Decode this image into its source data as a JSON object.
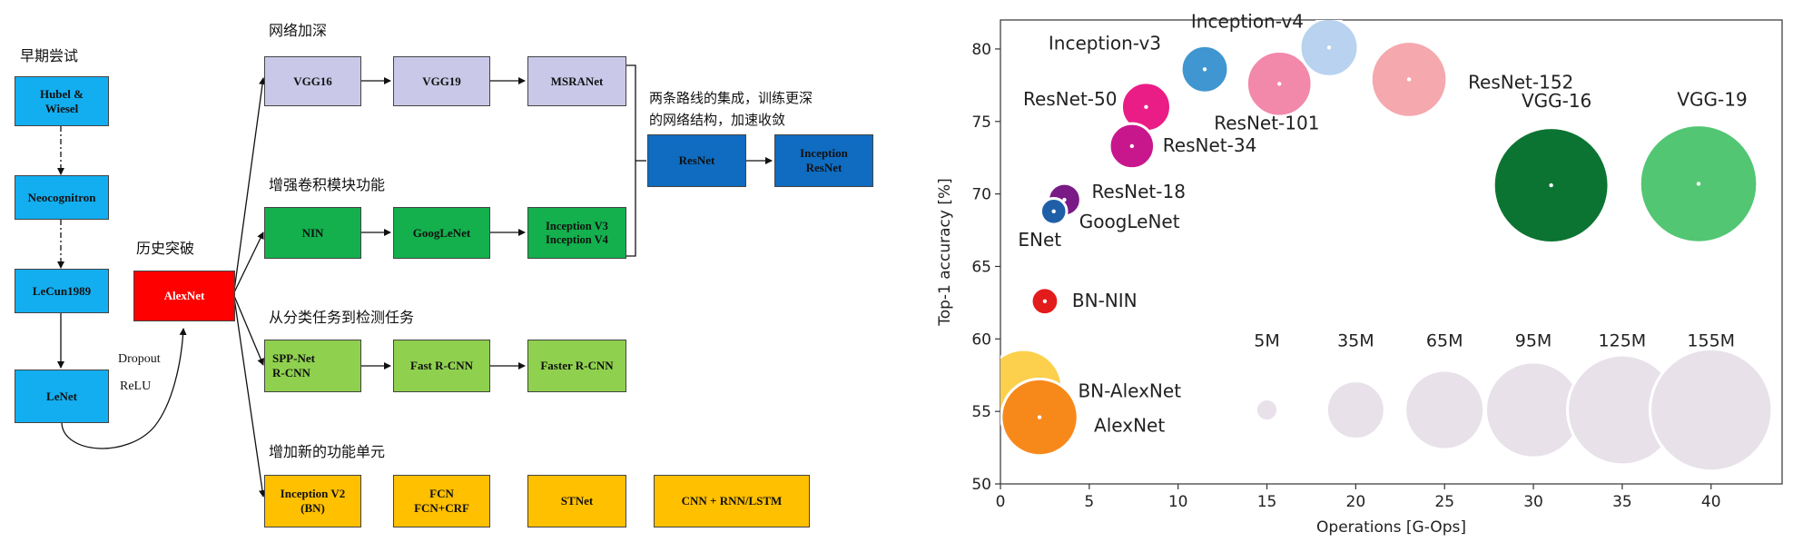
{
  "colors": {
    "blue": "#12aef0",
    "red": "#ff0000",
    "lavender": "#c9c8e8",
    "green": "#13b04d",
    "lightgreen": "#8fd14f",
    "darkblue": "#0f6cc0",
    "orange": "#ffc000"
  },
  "diagram": {
    "sections": {
      "early": "早期尝试",
      "breakthrough": "历史突破",
      "deeper": "网络加深",
      "conv": "增强卷积模块功能",
      "detect": "从分类任务到检测任务",
      "newunit": "增加新的功能单元"
    },
    "note": "两条路线的集成，训练更深\n的网络结构，加速收敛",
    "edge_labels": {
      "dropout": "Dropout",
      "relu": "ReLU"
    },
    "nodes": {
      "hubel": "Hubel &\nWiesel",
      "neocognitron": "Neocognitron",
      "lecun": "LeCun1989",
      "lenet": "LeNet",
      "alexnet": "AlexNet",
      "vgg16": "VGG16",
      "vgg19": "VGG19",
      "msranet": "MSRANet",
      "nin": "NIN",
      "googlenet": "GoogLeNet",
      "inception_v3v4": "Inception V3\nInception V4",
      "resnet": "ResNet",
      "inception_resnet": "Inception\nResNet",
      "spp": "SPP-Net\nR-CNN",
      "fast_rcnn": "Fast R-CNN",
      "faster_rcnn": "Faster R-CNN",
      "inception_v2": "Inception V2\n(BN)",
      "fcn": "FCN\nFCN+CRF",
      "stnet": "STNet",
      "cnn_rnn": "CNN + RNN/LSTM"
    }
  },
  "chart_data": {
    "type": "scatter",
    "xlabel": "Operations [G-Ops]",
    "ylabel": "Top-1 accuracy [%]",
    "xlim": [
      0,
      44
    ],
    "ylim": [
      50,
      82
    ],
    "xticks": [
      0,
      5,
      10,
      15,
      20,
      25,
      30,
      35,
      40
    ],
    "yticks": [
      50,
      55,
      60,
      65,
      70,
      75,
      80
    ],
    "points": [
      {
        "name": "Inception-v4",
        "x": 18.5,
        "y": 80.1,
        "size_m": 35,
        "color": "#b8d2f0"
      },
      {
        "name": "Inception-v3",
        "x": 11.5,
        "y": 78.6,
        "size_m": 23,
        "color": "#3f96d0"
      },
      {
        "name": "ResNet-152",
        "x": 23,
        "y": 77.9,
        "size_m": 60,
        "color": "#f5a8ae"
      },
      {
        "name": "ResNet-101",
        "x": 15.7,
        "y": 77.6,
        "size_m": 44,
        "color": "#f288aa"
      },
      {
        "name": "ResNet-50",
        "x": 8.2,
        "y": 76.0,
        "size_m": 25,
        "color": "#ea1d86"
      },
      {
        "name": "ResNet-34",
        "x": 7.4,
        "y": 73.3,
        "size_m": 21,
        "color": "#c8178c"
      },
      {
        "name": "VGG-16",
        "x": 31,
        "y": 70.6,
        "size_m": 138,
        "color": "#0c7432"
      },
      {
        "name": "VGG-19",
        "x": 39.3,
        "y": 70.7,
        "size_m": 144,
        "color": "#52c673"
      },
      {
        "name": "ResNet-18",
        "x": 3.6,
        "y": 69.6,
        "size_m": 11,
        "color": "#7a1a86"
      },
      {
        "name": "GoogLeNet",
        "x": 3.0,
        "y": 68.8,
        "size_m": 7,
        "color": "#1f5fa8"
      },
      {
        "name": "ENet",
        "x": 1.7,
        "y": 68.4,
        "size_m": 0.37,
        "color": "#111111"
      },
      {
        "name": "BN-NIN",
        "x": 2.5,
        "y": 62.6,
        "size_m": 7.6,
        "color": "#e31b1b"
      },
      {
        "name": "BN-AlexNet",
        "x": 1.3,
        "y": 56.6,
        "size_m": 62,
        "color": "#fcd04d"
      },
      {
        "name": "AlexNet",
        "x": 2.2,
        "y": 54.6,
        "size_m": 61,
        "color": "#f7891b"
      }
    ],
    "size_legend": {
      "labels": [
        "5M",
        "35M",
        "65M",
        "95M",
        "125M",
        "155M"
      ],
      "values_m": [
        5,
        35,
        65,
        95,
        125,
        155
      ],
      "x": [
        15,
        20,
        25,
        30,
        35,
        40
      ],
      "y": 55.1,
      "color": "#e8e1ea"
    }
  }
}
